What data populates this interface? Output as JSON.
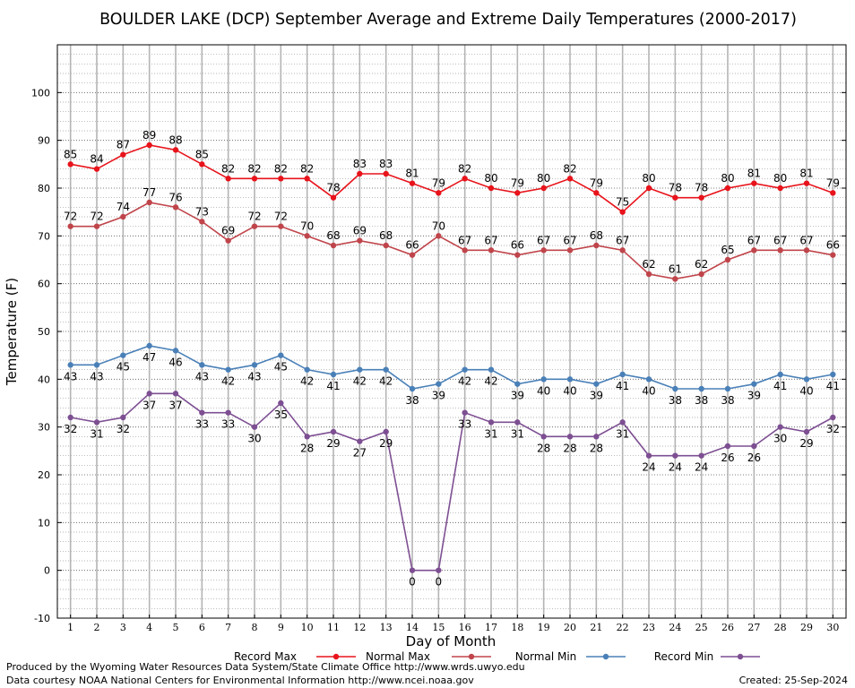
{
  "chart_data": {
    "type": "line",
    "title": "BOULDER LAKE (DCP) September Average and Extreme Daily Temperatures (2000-2017)",
    "xlabel": "Day of Month",
    "ylabel": "Temperature (F)",
    "ylim": [
      -10,
      110
    ],
    "yticks": [
      -10,
      0,
      10,
      20,
      30,
      40,
      50,
      60,
      70,
      80,
      90,
      100
    ],
    "x": [
      1,
      2,
      3,
      4,
      5,
      6,
      7,
      8,
      9,
      10,
      11,
      12,
      13,
      14,
      15,
      16,
      17,
      18,
      19,
      20,
      21,
      22,
      23,
      24,
      25,
      26,
      27,
      28,
      29,
      30
    ],
    "grid": true,
    "legend_position": "bottom",
    "series": [
      {
        "name": "Record Max",
        "color": "#e8131b",
        "label_position": "above",
        "values": [
          85,
          84,
          87,
          89,
          88,
          85,
          82,
          82,
          82,
          82,
          78,
          83,
          83,
          81,
          79,
          82,
          80,
          79,
          80,
          82,
          79,
          75,
          80,
          78,
          78,
          80,
          81,
          80,
          81,
          79
        ]
      },
      {
        "name": "Normal Max",
        "color": "#c0454b",
        "label_position": "above",
        "values": [
          72,
          72,
          74,
          77,
          76,
          73,
          69,
          72,
          72,
          70,
          68,
          69,
          68,
          66,
          70,
          67,
          67,
          66,
          67,
          67,
          68,
          67,
          62,
          61,
          62,
          65,
          67,
          67,
          67,
          66
        ]
      },
      {
        "name": "Normal Min",
        "color": "#4a80b8",
        "label_position": "below",
        "values": [
          43,
          43,
          45,
          47,
          46,
          43,
          42,
          43,
          45,
          42,
          41,
          42,
          42,
          38,
          39,
          42,
          42,
          39,
          40,
          40,
          39,
          41,
          40,
          38,
          38,
          38,
          39,
          41,
          40,
          41
        ]
      },
      {
        "name": "Record Min",
        "color": "#7d4f92",
        "label_position": "below",
        "values": [
          32,
          31,
          32,
          37,
          37,
          33,
          33,
          30,
          35,
          28,
          29,
          27,
          29,
          0,
          0,
          33,
          31,
          31,
          28,
          28,
          28,
          31,
          24,
          24,
          24,
          26,
          26,
          30,
          29,
          32
        ]
      }
    ]
  },
  "footer": {
    "producer": "Produced by the Wyoming Water Resources Data System/State Climate Office http://www.wrds.uwyo.edu",
    "courtesy": "Data courtesy NOAA National Centers for Environmental Information http://www.ncei.noaa.gov",
    "created": "Created:  25-Sep-2024"
  }
}
